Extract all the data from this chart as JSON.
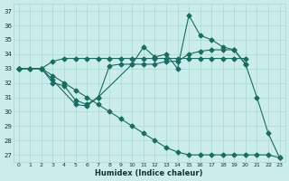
{
  "xlabel": "Humidex (Indice chaleur)",
  "xlim": [
    -0.5,
    23.5
  ],
  "ylim": [
    26.5,
    37.5
  ],
  "xticks": [
    0,
    1,
    2,
    3,
    4,
    5,
    6,
    7,
    8,
    9,
    10,
    11,
    12,
    13,
    14,
    15,
    16,
    17,
    18,
    19,
    20,
    21,
    22,
    23
  ],
  "yticks": [
    27,
    28,
    29,
    30,
    31,
    32,
    33,
    34,
    35,
    36,
    37
  ],
  "bg_color": "#caecea",
  "grid_color": "#a8d8d0",
  "line_color": "#1a6b60",
  "line1_x": [
    0,
    1,
    2,
    3,
    4,
    5,
    6,
    7,
    8,
    9,
    10,
    11,
    12,
    13,
    14,
    15,
    16,
    17,
    18,
    19,
    20
  ],
  "line1_y": [
    33.0,
    33.0,
    33.0,
    33.5,
    33.7,
    33.7,
    33.7,
    33.7,
    33.7,
    33.7,
    33.7,
    33.7,
    33.7,
    33.7,
    33.7,
    33.7,
    33.7,
    33.7,
    33.7,
    33.7,
    33.7
  ],
  "line2_x": [
    0,
    1,
    2,
    3,
    4,
    5,
    6,
    7,
    8,
    9,
    10,
    11,
    12,
    13,
    14,
    15,
    16,
    17,
    18,
    19,
    20
  ],
  "line2_y": [
    33.0,
    33.0,
    33.0,
    32.0,
    31.8,
    30.8,
    30.5,
    31.0,
    33.2,
    33.3,
    33.3,
    33.3,
    33.3,
    33.5,
    33.5,
    34.0,
    34.2,
    34.3,
    34.3,
    34.3,
    33.3
  ],
  "line3_x": [
    0,
    2,
    3,
    5,
    6,
    7,
    10,
    11,
    12,
    13,
    14,
    15,
    16,
    17,
    18,
    19,
    20,
    21,
    22,
    23
  ],
  "line3_y": [
    33.0,
    33.0,
    32.2,
    30.5,
    30.4,
    31.0,
    33.3,
    34.5,
    33.8,
    34.0,
    33.0,
    36.7,
    35.3,
    35.0,
    34.5,
    34.3,
    33.3,
    31.0,
    28.5,
    26.8
  ],
  "line4_x": [
    0,
    2,
    3,
    4,
    5,
    6,
    7,
    8,
    9,
    10,
    11,
    12,
    13,
    14,
    15,
    16,
    17,
    18,
    19,
    20,
    21,
    22,
    23
  ],
  "line4_y": [
    33.0,
    33.0,
    32.5,
    32.0,
    31.5,
    31.0,
    30.5,
    30.0,
    29.5,
    29.0,
    28.5,
    28.0,
    27.5,
    27.2,
    27.0,
    27.0,
    27.0,
    27.0,
    27.0,
    27.0,
    27.0,
    27.0,
    26.8
  ]
}
